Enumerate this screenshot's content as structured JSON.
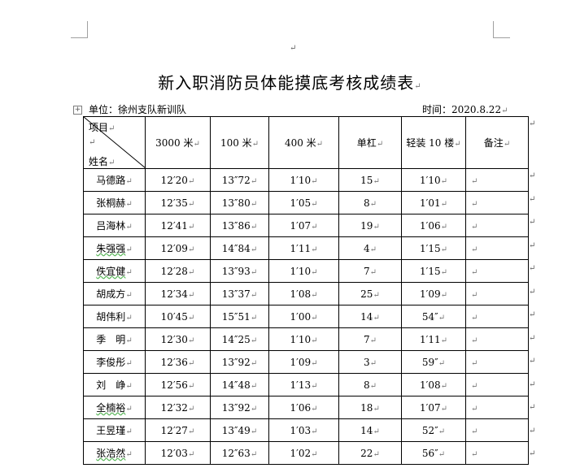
{
  "doc": {
    "title": "新入职消防员体能摸底考核成绩表",
    "unit_label": "单位：徐州支队新训队",
    "time_label": "时间：2020.8.22",
    "para_mark": "↵",
    "table_handle": "+"
  },
  "table": {
    "diag_top": "项目",
    "diag_bottom": "姓名",
    "columns": [
      "3000 米",
      "100 米",
      "400 米",
      "单杠",
      "轻装 10 楼",
      "备注"
    ],
    "rows": [
      {
        "name": "马德路",
        "c3000": "12′20",
        "c100": "13″72",
        "c400": "1′10",
        "bar": "15",
        "stairs": "1′10",
        "note": ""
      },
      {
        "name": "张桐赫",
        "c3000": "12′35",
        "c100": "13″80",
        "c400": "1′05",
        "bar": "8",
        "stairs": "1′01",
        "note": ""
      },
      {
        "name": "吕海林",
        "c3000": "12′41",
        "c100": "13″86",
        "c400": "1′07",
        "bar": "19",
        "stairs": "1′06",
        "note": ""
      },
      {
        "name": "朱强强",
        "c3000": "12′09",
        "c100": "14″84",
        "c400": "1′11",
        "bar": "4",
        "stairs": "1′15",
        "note": ""
      },
      {
        "name": "佚宜健",
        "c3000": "12′28",
        "c100": "13″93",
        "c400": "1′10",
        "bar": "7",
        "stairs": "1′15",
        "note": ""
      },
      {
        "name": "胡成方",
        "c3000": "12′34",
        "c100": "13″37",
        "c400": "1′08",
        "bar": "25",
        "stairs": "1′09",
        "note": ""
      },
      {
        "name": "胡伟利",
        "c3000": "10′45",
        "c100": "15″51",
        "c400": "1′00",
        "bar": "14",
        "stairs": "54″",
        "note": ""
      },
      {
        "name": "季　明",
        "c3000": "12′30",
        "c100": "14″25",
        "c400": "1′10",
        "bar": "7",
        "stairs": "1′11",
        "note": ""
      },
      {
        "name": "李俊彤",
        "c3000": "12′36",
        "c100": "13″92",
        "c400": "1′09",
        "bar": "3",
        "stairs": "59″",
        "note": ""
      },
      {
        "name": "刘　峥",
        "c3000": "12′56",
        "c100": "14″48",
        "c400": "1′13",
        "bar": "8",
        "stairs": "1′08",
        "note": ""
      },
      {
        "name": "全楠裕",
        "c3000": "12′32",
        "c100": "13″92",
        "c400": "1′06",
        "bar": "18",
        "stairs": "1′07",
        "note": ""
      },
      {
        "name": "王昱瑾",
        "c3000": "12′27",
        "c100": "13″49",
        "c400": "1′03",
        "bar": "14",
        "stairs": "52″",
        "note": ""
      },
      {
        "name": "张浩然",
        "c3000": "12′03",
        "c100": "12″63",
        "c400": "1′02",
        "bar": "22",
        "stairs": "56″",
        "note": ""
      }
    ]
  }
}
